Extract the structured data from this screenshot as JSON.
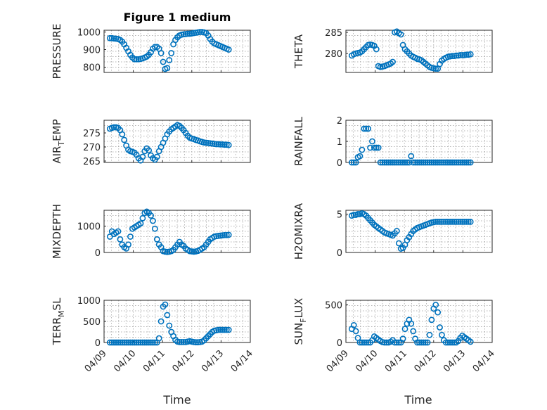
{
  "figure": {
    "title": "Figure 1 medium",
    "marker_color": "#0072BD"
  },
  "x_tick_labels": [
    "04/09",
    "04/10",
    "04/11",
    "04/12",
    "04/13",
    "04/14"
  ],
  "x_axis_label": "Time",
  "chart_data": [
    {
      "type": "scatter",
      "ylabel": "PRESSURE",
      "ylim": [
        770,
        1010
      ],
      "yticks": [
        800,
        900,
        1000
      ],
      "x_range_days": [
        0,
        5
      ],
      "grid": true,
      "x": [
        0.2,
        0.27,
        0.34,
        0.41,
        0.48,
        0.55,
        0.62,
        0.69,
        0.76,
        0.83,
        0.9,
        0.97,
        1.04,
        1.11,
        1.18,
        1.25,
        1.32,
        1.39,
        1.46,
        1.53,
        1.6,
        1.67,
        1.74,
        1.81,
        1.88,
        1.95,
        2.02,
        2.09,
        2.16,
        2.23,
        2.3,
        2.37,
        2.44,
        2.51,
        2.58,
        2.65,
        2.72,
        2.79,
        2.86,
        2.93,
        3.0,
        3.07,
        3.14,
        3.21,
        3.28,
        3.35,
        3.42,
        3.49,
        3.56,
        3.63,
        3.7,
        3.77,
        3.84,
        3.91,
        3.98,
        4.05,
        4.12,
        4.19,
        4.26
      ],
      "y": [
        965,
        965,
        963,
        962,
        960,
        955,
        945,
        930,
        910,
        890,
        870,
        855,
        845,
        845,
        845,
        847,
        850,
        855,
        860,
        870,
        885,
        905,
        915,
        915,
        905,
        880,
        830,
        790,
        795,
        840,
        880,
        930,
        955,
        970,
        980,
        985,
        987,
        988,
        990,
        990,
        992,
        994,
        996,
        998,
        1000,
        1000,
        998,
        994,
        980,
        960,
        945,
        935,
        930,
        925,
        920,
        915,
        910,
        905,
        900
      ]
    },
    {
      "type": "scatter",
      "ylabel": "THETA",
      "ylim": [
        275.5,
        285.5
      ],
      "yticks": [
        280,
        285
      ],
      "x_range_days": [
        0,
        5
      ],
      "grid": true,
      "x": [
        0.2,
        0.27,
        0.34,
        0.41,
        0.48,
        0.55,
        0.62,
        0.69,
        0.76,
        0.83,
        0.9,
        0.97,
        1.04,
        1.11,
        1.18,
        1.25,
        1.32,
        1.39,
        1.46,
        1.53,
        1.6,
        1.67,
        1.74,
        1.81,
        1.88,
        1.95,
        2.02,
        2.09,
        2.16,
        2.23,
        2.3,
        2.37,
        2.44,
        2.51,
        2.58,
        2.65,
        2.72,
        2.79,
        2.86,
        2.93,
        3.0,
        3.07,
        3.14,
        3.21,
        3.28,
        3.35,
        3.42,
        3.49,
        3.56,
        3.63,
        3.7,
        3.77,
        3.84,
        3.91,
        3.98,
        4.05,
        4.12,
        4.19,
        4.26
      ],
      "y": [
        279.5,
        279.8,
        280,
        280.1,
        280.2,
        280.5,
        281,
        281.5,
        282,
        282.1,
        282,
        281.8,
        281,
        277,
        276.8,
        276.9,
        277,
        277.2,
        277.4,
        277.6,
        278,
        285,
        285.2,
        284.8,
        284.5,
        282,
        281,
        280.5,
        280,
        279.5,
        279.2,
        279,
        278.7,
        278.6,
        278.4,
        278,
        277.6,
        277.2,
        276.8,
        276.6,
        276.5,
        276.4,
        276.4,
        277.5,
        278.3,
        278.7,
        279,
        279.2,
        279.3,
        279.4,
        279.4,
        279.5,
        279.5,
        279.6,
        279.6,
        279.6,
        279.7,
        279.7,
        279.8
      ]
    },
    {
      "type": "scatter",
      "ylabel": "AIR_TEMP",
      "ylim": [
        264.5,
        279.5
      ],
      "yticks": [
        265,
        270,
        275
      ],
      "x_range_days": [
        0,
        5
      ],
      "grid": true,
      "x": [
        0.2,
        0.27,
        0.34,
        0.41,
        0.48,
        0.55,
        0.62,
        0.69,
        0.76,
        0.83,
        0.9,
        0.97,
        1.04,
        1.11,
        1.18,
        1.25,
        1.32,
        1.39,
        1.46,
        1.53,
        1.6,
        1.67,
        1.74,
        1.81,
        1.88,
        1.95,
        2.02,
        2.09,
        2.16,
        2.23,
        2.3,
        2.37,
        2.44,
        2.51,
        2.58,
        2.65,
        2.72,
        2.79,
        2.86,
        2.93,
        3.0,
        3.07,
        3.14,
        3.21,
        3.28,
        3.35,
        3.42,
        3.49,
        3.56,
        3.63,
        3.7,
        3.77,
        3.84,
        3.91,
        3.98,
        4.05,
        4.12,
        4.19,
        4.26
      ],
      "y": [
        276.5,
        276.8,
        277,
        277,
        276.8,
        276,
        274.5,
        272.5,
        270.5,
        269,
        268.5,
        268.3,
        268,
        267.2,
        266,
        265.2,
        266.5,
        268.5,
        269.5,
        268.8,
        267,
        266,
        265.5,
        266.5,
        268.5,
        270,
        271.5,
        273,
        274.5,
        275.5,
        276.3,
        276.8,
        277.3,
        277.8,
        277.5,
        276.8,
        276,
        275,
        274,
        273.3,
        273,
        272.8,
        272.5,
        272.3,
        272,
        271.8,
        271.6,
        271.5,
        271.4,
        271.3,
        271.2,
        271.1,
        271,
        271,
        270.9,
        270.9,
        270.8,
        270.8,
        270.7
      ]
    },
    {
      "type": "scatter",
      "ylabel": "RAINFALL",
      "ylim": [
        0,
        2
      ],
      "yticks": [
        0,
        1,
        2
      ],
      "x_range_days": [
        0,
        5
      ],
      "grid": true,
      "x": [
        0.2,
        0.27,
        0.34,
        0.41,
        0.48,
        0.55,
        0.62,
        0.69,
        0.76,
        0.83,
        0.9,
        0.97,
        1.04,
        1.11,
        1.18,
        1.25,
        1.32,
        1.39,
        1.46,
        1.53,
        1.6,
        1.67,
        1.74,
        1.81,
        1.88,
        1.95,
        2.02,
        2.09,
        2.16,
        2.23,
        2.3,
        2.37,
        2.44,
        2.51,
        2.58,
        2.65,
        2.72,
        2.79,
        2.86,
        2.93,
        3.0,
        3.07,
        3.14,
        3.21,
        3.28,
        3.35,
        3.42,
        3.49,
        3.56,
        3.63,
        3.7,
        3.77,
        3.84,
        3.91,
        3.98,
        4.05,
        4.12,
        4.19,
        4.26
      ],
      "y": [
        0,
        0,
        0,
        0.25,
        0.3,
        0.6,
        1.6,
        1.6,
        1.6,
        0.7,
        1.0,
        0.7,
        0.7,
        0.7,
        0,
        0,
        0,
        0,
        0,
        0,
        0,
        0,
        0,
        0,
        0,
        0,
        0,
        0,
        0,
        0.3,
        0,
        0,
        0,
        0,
        0,
        0,
        0,
        0,
        0,
        0,
        0,
        0,
        0,
        0,
        0,
        0,
        0,
        0,
        0,
        0,
        0,
        0,
        0,
        0,
        0,
        0,
        0,
        0,
        0
      ]
    },
    {
      "type": "scatter",
      "ylabel": "MIXDEPTH",
      "ylim": [
        0,
        1600
      ],
      "yticks": [
        0,
        1000
      ],
      "x_range_days": [
        0,
        5
      ],
      "grid": true,
      "x": [
        0.2,
        0.27,
        0.34,
        0.41,
        0.48,
        0.55,
        0.62,
        0.69,
        0.76,
        0.83,
        0.9,
        0.97,
        1.04,
        1.11,
        1.18,
        1.25,
        1.32,
        1.39,
        1.46,
        1.53,
        1.6,
        1.67,
        1.74,
        1.81,
        1.88,
        1.95,
        2.02,
        2.09,
        2.16,
        2.23,
        2.3,
        2.37,
        2.44,
        2.51,
        2.58,
        2.65,
        2.72,
        2.79,
        2.86,
        2.93,
        3.0,
        3.07,
        3.14,
        3.21,
        3.28,
        3.35,
        3.42,
        3.49,
        3.56,
        3.63,
        3.7,
        3.77,
        3.84,
        3.91,
        3.98,
        4.05,
        4.12,
        4.19,
        4.26
      ],
      "y": [
        600,
        800,
        700,
        750,
        800,
        500,
        300,
        200,
        150,
        300,
        600,
        900,
        950,
        1000,
        1050,
        1100,
        1300,
        1500,
        1550,
        1500,
        1400,
        1200,
        900,
        500,
        300,
        200,
        50,
        30,
        20,
        30,
        50,
        100,
        200,
        300,
        400,
        300,
        250,
        150,
        100,
        50,
        40,
        30,
        40,
        60,
        100,
        150,
        200,
        300,
        400,
        500,
        550,
        600,
        620,
        630,
        640,
        650,
        660,
        660,
        670
      ]
    },
    {
      "type": "scatter",
      "ylabel": "H2OMIXRA",
      "ylim": [
        0,
        5.5
      ],
      "yticks": [
        0,
        5
      ],
      "x_range_days": [
        0,
        5
      ],
      "grid": true,
      "x": [
        0.2,
        0.27,
        0.34,
        0.41,
        0.48,
        0.55,
        0.62,
        0.69,
        0.76,
        0.83,
        0.9,
        0.97,
        1.04,
        1.11,
        1.18,
        1.25,
        1.32,
        1.39,
        1.46,
        1.53,
        1.6,
        1.67,
        1.74,
        1.81,
        1.88,
        1.95,
        2.02,
        2.09,
        2.16,
        2.23,
        2.3,
        2.37,
        2.44,
        2.51,
        2.58,
        2.65,
        2.72,
        2.79,
        2.86,
        2.93,
        3.0,
        3.07,
        3.14,
        3.21,
        3.28,
        3.35,
        3.42,
        3.49,
        3.56,
        3.63,
        3.7,
        3.77,
        3.84,
        3.91,
        3.98,
        4.05,
        4.12,
        4.19,
        4.26
      ],
      "y": [
        4.8,
        4.9,
        4.9,
        5.0,
        5.0,
        5.1,
        5.0,
        4.8,
        4.5,
        4.2,
        3.9,
        3.6,
        3.4,
        3.2,
        3.0,
        2.8,
        2.6,
        2.5,
        2.4,
        2.3,
        2.2,
        2.5,
        2.8,
        1.2,
        0.5,
        0.6,
        1.0,
        1.6,
        2.0,
        2.4,
        2.8,
        3.0,
        3.2,
        3.3,
        3.4,
        3.5,
        3.6,
        3.7,
        3.8,
        3.9,
        3.95,
        4.0,
        4.0,
        4.0,
        4.0,
        4.0,
        4.0,
        4.0,
        4.0,
        4.0,
        4.0,
        4.0,
        4.0,
        4.0,
        4.0,
        4.0,
        4.0,
        4.0,
        4.0
      ]
    },
    {
      "type": "scatter",
      "ylabel": "TERR_MSL",
      "ylim": [
        0,
        1000
      ],
      "yticks": [
        0,
        500,
        1000
      ],
      "x_range_days": [
        0,
        5
      ],
      "grid": true,
      "x": [
        0.2,
        0.27,
        0.34,
        0.41,
        0.48,
        0.55,
        0.62,
        0.69,
        0.76,
        0.83,
        0.9,
        0.97,
        1.04,
        1.11,
        1.18,
        1.25,
        1.32,
        1.39,
        1.46,
        1.53,
        1.6,
        1.67,
        1.74,
        1.81,
        1.88,
        1.95,
        2.02,
        2.09,
        2.16,
        2.23,
        2.3,
        2.37,
        2.44,
        2.51,
        2.58,
        2.65,
        2.72,
        2.79,
        2.86,
        2.93,
        3.0,
        3.07,
        3.14,
        3.21,
        3.28,
        3.35,
        3.42,
        3.49,
        3.56,
        3.63,
        3.7,
        3.77,
        3.84,
        3.91,
        3.98,
        4.05,
        4.12,
        4.19,
        4.26
      ],
      "y": [
        0,
        0,
        0,
        0,
        0,
        0,
        0,
        0,
        0,
        0,
        0,
        0,
        0,
        0,
        0,
        0,
        0,
        0,
        0,
        0,
        0,
        0,
        0,
        0,
        100,
        500,
        850,
        900,
        650,
        400,
        250,
        150,
        60,
        20,
        10,
        10,
        10,
        10,
        20,
        30,
        20,
        10,
        5,
        5,
        10,
        20,
        50,
        100,
        150,
        200,
        250,
        280,
        290,
        300,
        300,
        300,
        300,
        300,
        300
      ]
    },
    {
      "type": "scatter",
      "ylabel": "SUN_FLUX",
      "ylim": [
        0,
        560
      ],
      "yticks": [
        0,
        500
      ],
      "x_range_days": [
        0,
        5
      ],
      "grid": true,
      "x": [
        0.2,
        0.27,
        0.34,
        0.41,
        0.48,
        0.55,
        0.62,
        0.69,
        0.76,
        0.83,
        0.9,
        0.97,
        1.04,
        1.11,
        1.18,
        1.25,
        1.32,
        1.39,
        1.46,
        1.53,
        1.6,
        1.67,
        1.74,
        1.81,
        1.88,
        1.95,
        2.02,
        2.09,
        2.16,
        2.23,
        2.3,
        2.37,
        2.44,
        2.51,
        2.58,
        2.65,
        2.72,
        2.79,
        2.86,
        2.93,
        3.0,
        3.07,
        3.14,
        3.21,
        3.28,
        3.35,
        3.42,
        3.49,
        3.56,
        3.63,
        3.7,
        3.77,
        3.84,
        3.91,
        3.98,
        4.05,
        4.12,
        4.19,
        4.26
      ],
      "y": [
        180,
        230,
        150,
        60,
        0,
        0,
        0,
        0,
        0,
        0,
        30,
        80,
        60,
        40,
        20,
        5,
        0,
        0,
        0,
        10,
        30,
        0,
        0,
        0,
        0,
        50,
        180,
        250,
        300,
        250,
        150,
        50,
        0,
        0,
        0,
        0,
        0,
        0,
        100,
        300,
        450,
        500,
        400,
        200,
        100,
        30,
        0,
        0,
        0,
        0,
        0,
        0,
        20,
        60,
        90,
        70,
        50,
        30,
        10
      ]
    }
  ]
}
